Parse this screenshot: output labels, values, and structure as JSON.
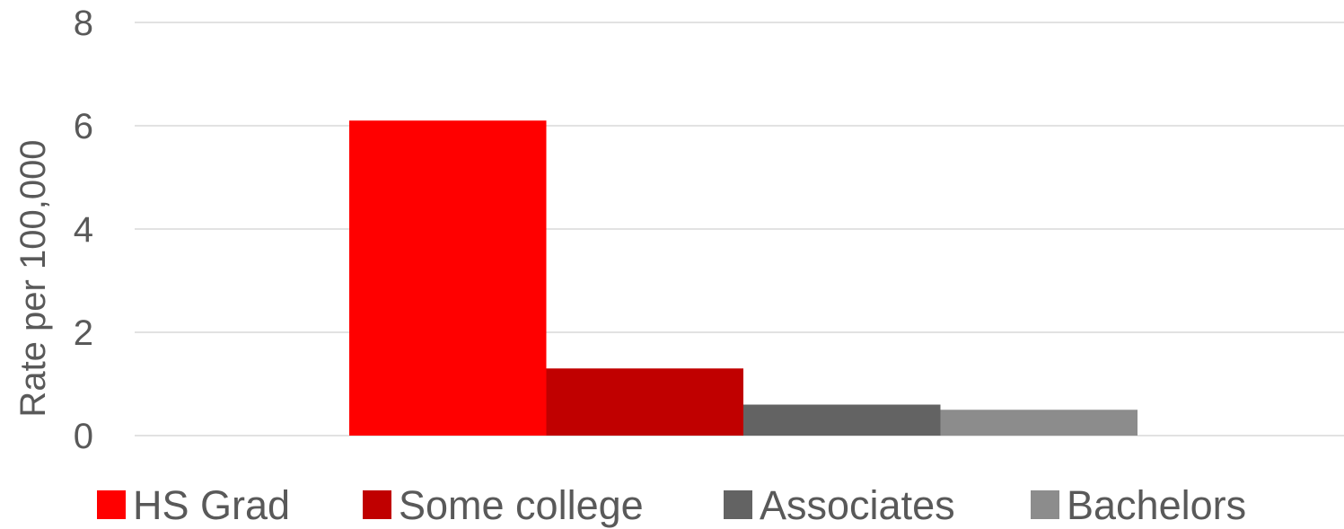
{
  "chart_data": {
    "type": "bar",
    "title": "",
    "xlabel": "",
    "ylabel": "Rate per 100,000",
    "ylim": [
      0,
      8
    ],
    "yticks": [
      0,
      2,
      4,
      6,
      8
    ],
    "grid": true,
    "legend_position": "bottom",
    "categories": [
      ""
    ],
    "series": [
      {
        "name": "HS Grad",
        "values": [
          6.1
        ],
        "color": "#ff0000"
      },
      {
        "name": "Some college",
        "values": [
          1.3
        ],
        "color": "#c00000"
      },
      {
        "name": "Associates",
        "values": [
          0.6
        ],
        "color": "#636363"
      },
      {
        "name": "Bachelors",
        "values": [
          0.5
        ],
        "color": "#8c8c8c"
      }
    ]
  }
}
